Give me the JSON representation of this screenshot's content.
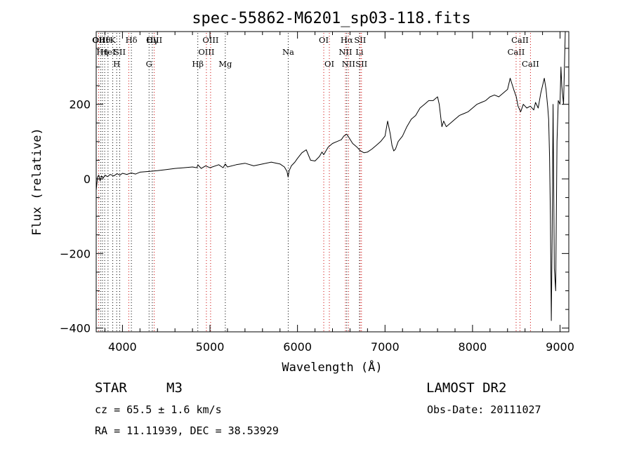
{
  "chart_data": {
    "type": "line",
    "title": "spec-55862-M6201_sp03-118.fits",
    "xlabel": "Wavelength (Å)",
    "ylabel": "Flux (relative)",
    "xlim": [
      3700,
      9100
    ],
    "ylim": [
      -410,
      395
    ],
    "xticks": [
      4000,
      5000,
      6000,
      7000,
      8000,
      9000
    ],
    "yticks": [
      -400,
      -200,
      0,
      200
    ],
    "xtick_labels": [
      "4000",
      "5000",
      "6000",
      "7000",
      "8000",
      "9000"
    ],
    "ytick_labels": [
      "−400",
      "−200",
      "0",
      "200"
    ],
    "grid": false,
    "series": [
      {
        "x": [
          3700,
          3715,
          3730,
          3745,
          3760,
          3780,
          3800,
          3830,
          3860,
          3900,
          3940,
          3970,
          4000,
          4050,
          4100,
          4150,
          4200,
          4300,
          4400,
          4500,
          4600,
          4700,
          4800,
          4850,
          4862,
          4880,
          4900,
          4950,
          5000,
          5100,
          5150,
          5175,
          5200,
          5300,
          5400,
          5500,
          5600,
          5700,
          5800,
          5850,
          5880,
          5893,
          5905,
          5930,
          5970,
          6000,
          6050,
          6100,
          6150,
          6200,
          6250,
          6280,
          6300,
          6350,
          6400,
          6450,
          6500,
          6530,
          6563,
          6590,
          6630,
          6680,
          6720,
          6760,
          6800,
          6850,
          6900,
          6950,
          7000,
          7030,
          7060,
          7080,
          7100,
          7120,
          7150,
          7200,
          7250,
          7300,
          7350,
          7400,
          7450,
          7500,
          7550,
          7600,
          7620,
          7640,
          7650,
          7670,
          7700,
          7750,
          7800,
          7850,
          7900,
          7950,
          8000,
          8050,
          8100,
          8150,
          8200,
          8250,
          8300,
          8350,
          8400,
          8430,
          8470,
          8500,
          8520,
          8550,
          8580,
          8620,
          8660,
          8700,
          8720,
          8750,
          8780,
          8800,
          8820,
          8840,
          8860,
          8870,
          8880,
          8890,
          8900,
          8910,
          8920,
          8935,
          8950,
          8965,
          8980,
          9000,
          9010,
          9020,
          9040,
          9060
        ],
        "y": [
          -30,
          5,
          10,
          -5,
          8,
          2,
          10,
          6,
          12,
          8,
          14,
          10,
          15,
          12,
          16,
          13,
          18,
          20,
          22,
          25,
          28,
          30,
          32,
          30,
          38,
          33,
          28,
          35,
          30,
          38,
          30,
          40,
          32,
          38,
          42,
          35,
          40,
          45,
          40,
          32,
          20,
          5,
          22,
          35,
          45,
          55,
          70,
          78,
          50,
          48,
          60,
          72,
          65,
          85,
          95,
          100,
          105,
          115,
          120,
          110,
          95,
          85,
          75,
          70,
          72,
          80,
          90,
          100,
          115,
          155,
          120,
          90,
          75,
          80,
          100,
          115,
          140,
          160,
          170,
          190,
          200,
          210,
          210,
          220,
          200,
          160,
          140,
          155,
          140,
          150,
          160,
          170,
          175,
          180,
          190,
          200,
          205,
          210,
          220,
          225,
          220,
          230,
          240,
          270,
          240,
          220,
          195,
          180,
          200,
          190,
          195,
          185,
          205,
          190,
          230,
          250,
          270,
          240,
          190,
          160,
          60,
          -100,
          -380,
          -150,
          200,
          -240,
          -300,
          100,
          210,
          200,
          300,
          250,
          200,
          395
        ]
      }
    ],
    "lines": [
      {
        "x": 3727,
        "color": "red",
        "labels": [
          "OII"
        ]
      },
      {
        "x": 3750,
        "color": "black",
        "labels": [
          "OIII"
        ]
      },
      {
        "x": 3771,
        "color": "black",
        "labels": [
          "",
          "Hη"
        ]
      },
      {
        "x": 3797,
        "color": "black",
        "labels": [
          "Hθ"
        ]
      },
      {
        "x": 3835,
        "color": "black",
        "labels": [
          "",
          "HeI"
        ]
      },
      {
        "x": 3889,
        "color": "black",
        "labels": [
          "K"
        ]
      },
      {
        "x": 3934,
        "color": "black",
        "labels": [
          "",
          "",
          "H"
        ]
      },
      {
        "x": 3969,
        "color": "black",
        "labels": [
          "",
          "SII"
        ]
      },
      {
        "x": 4072,
        "color": "red",
        "labels": []
      },
      {
        "x": 4102,
        "color": "black",
        "labels": [
          "Hδ"
        ]
      },
      {
        "x": 4304,
        "color": "black",
        "labels": [
          "",
          "",
          "G"
        ]
      },
      {
        "x": 4341,
        "color": "black",
        "labels": [
          "Hγ"
        ]
      },
      {
        "x": 4363,
        "color": "red",
        "labels": [
          "OIII"
        ]
      },
      {
        "x": 4861,
        "color": "black",
        "labels": [
          "",
          "",
          "Hβ"
        ]
      },
      {
        "x": 4959,
        "color": "red",
        "labels": [
          "",
          "OIII"
        ]
      },
      {
        "x": 5007,
        "color": "red",
        "labels": [
          "OIII"
        ]
      },
      {
        "x": 5175,
        "color": "black",
        "labels": [
          "",
          "",
          "Mg"
        ]
      },
      {
        "x": 5894,
        "color": "black",
        "labels": [
          "",
          "Na"
        ]
      },
      {
        "x": 6300,
        "color": "red",
        "labels": [
          "OI"
        ]
      },
      {
        "x": 6364,
        "color": "red",
        "labels": [
          "",
          "",
          "OI"
        ]
      },
      {
        "x": 6548,
        "color": "red",
        "labels": [
          "",
          "NII"
        ]
      },
      {
        "x": 6563,
        "color": "black",
        "labels": [
          "Hα"
        ]
      },
      {
        "x": 6583,
        "color": "red",
        "labels": [
          "",
          "",
          "NII"
        ]
      },
      {
        "x": 6708,
        "color": "black",
        "labels": [
          "",
          "Li"
        ]
      },
      {
        "x": 6716,
        "color": "red",
        "labels": [
          "SII"
        ]
      },
      {
        "x": 6731,
        "color": "red",
        "labels": [
          "",
          "",
          "SII"
        ]
      },
      {
        "x": 8498,
        "color": "red",
        "labels": [
          "",
          "CaII"
        ]
      },
      {
        "x": 8542,
        "color": "red",
        "labels": [
          "CaII"
        ]
      },
      {
        "x": 8662,
        "color": "red",
        "labels": [
          "",
          "",
          "CaII"
        ]
      }
    ]
  },
  "info": {
    "class_type": "STAR",
    "subclass": "M3",
    "survey": "LAMOST DR2",
    "cz": "cz = 65.5 ± 1.6 km/s",
    "obs_date": "Obs-Date: 20111027",
    "coords": "RA =  11.11939, DEC =  38.53929"
  }
}
